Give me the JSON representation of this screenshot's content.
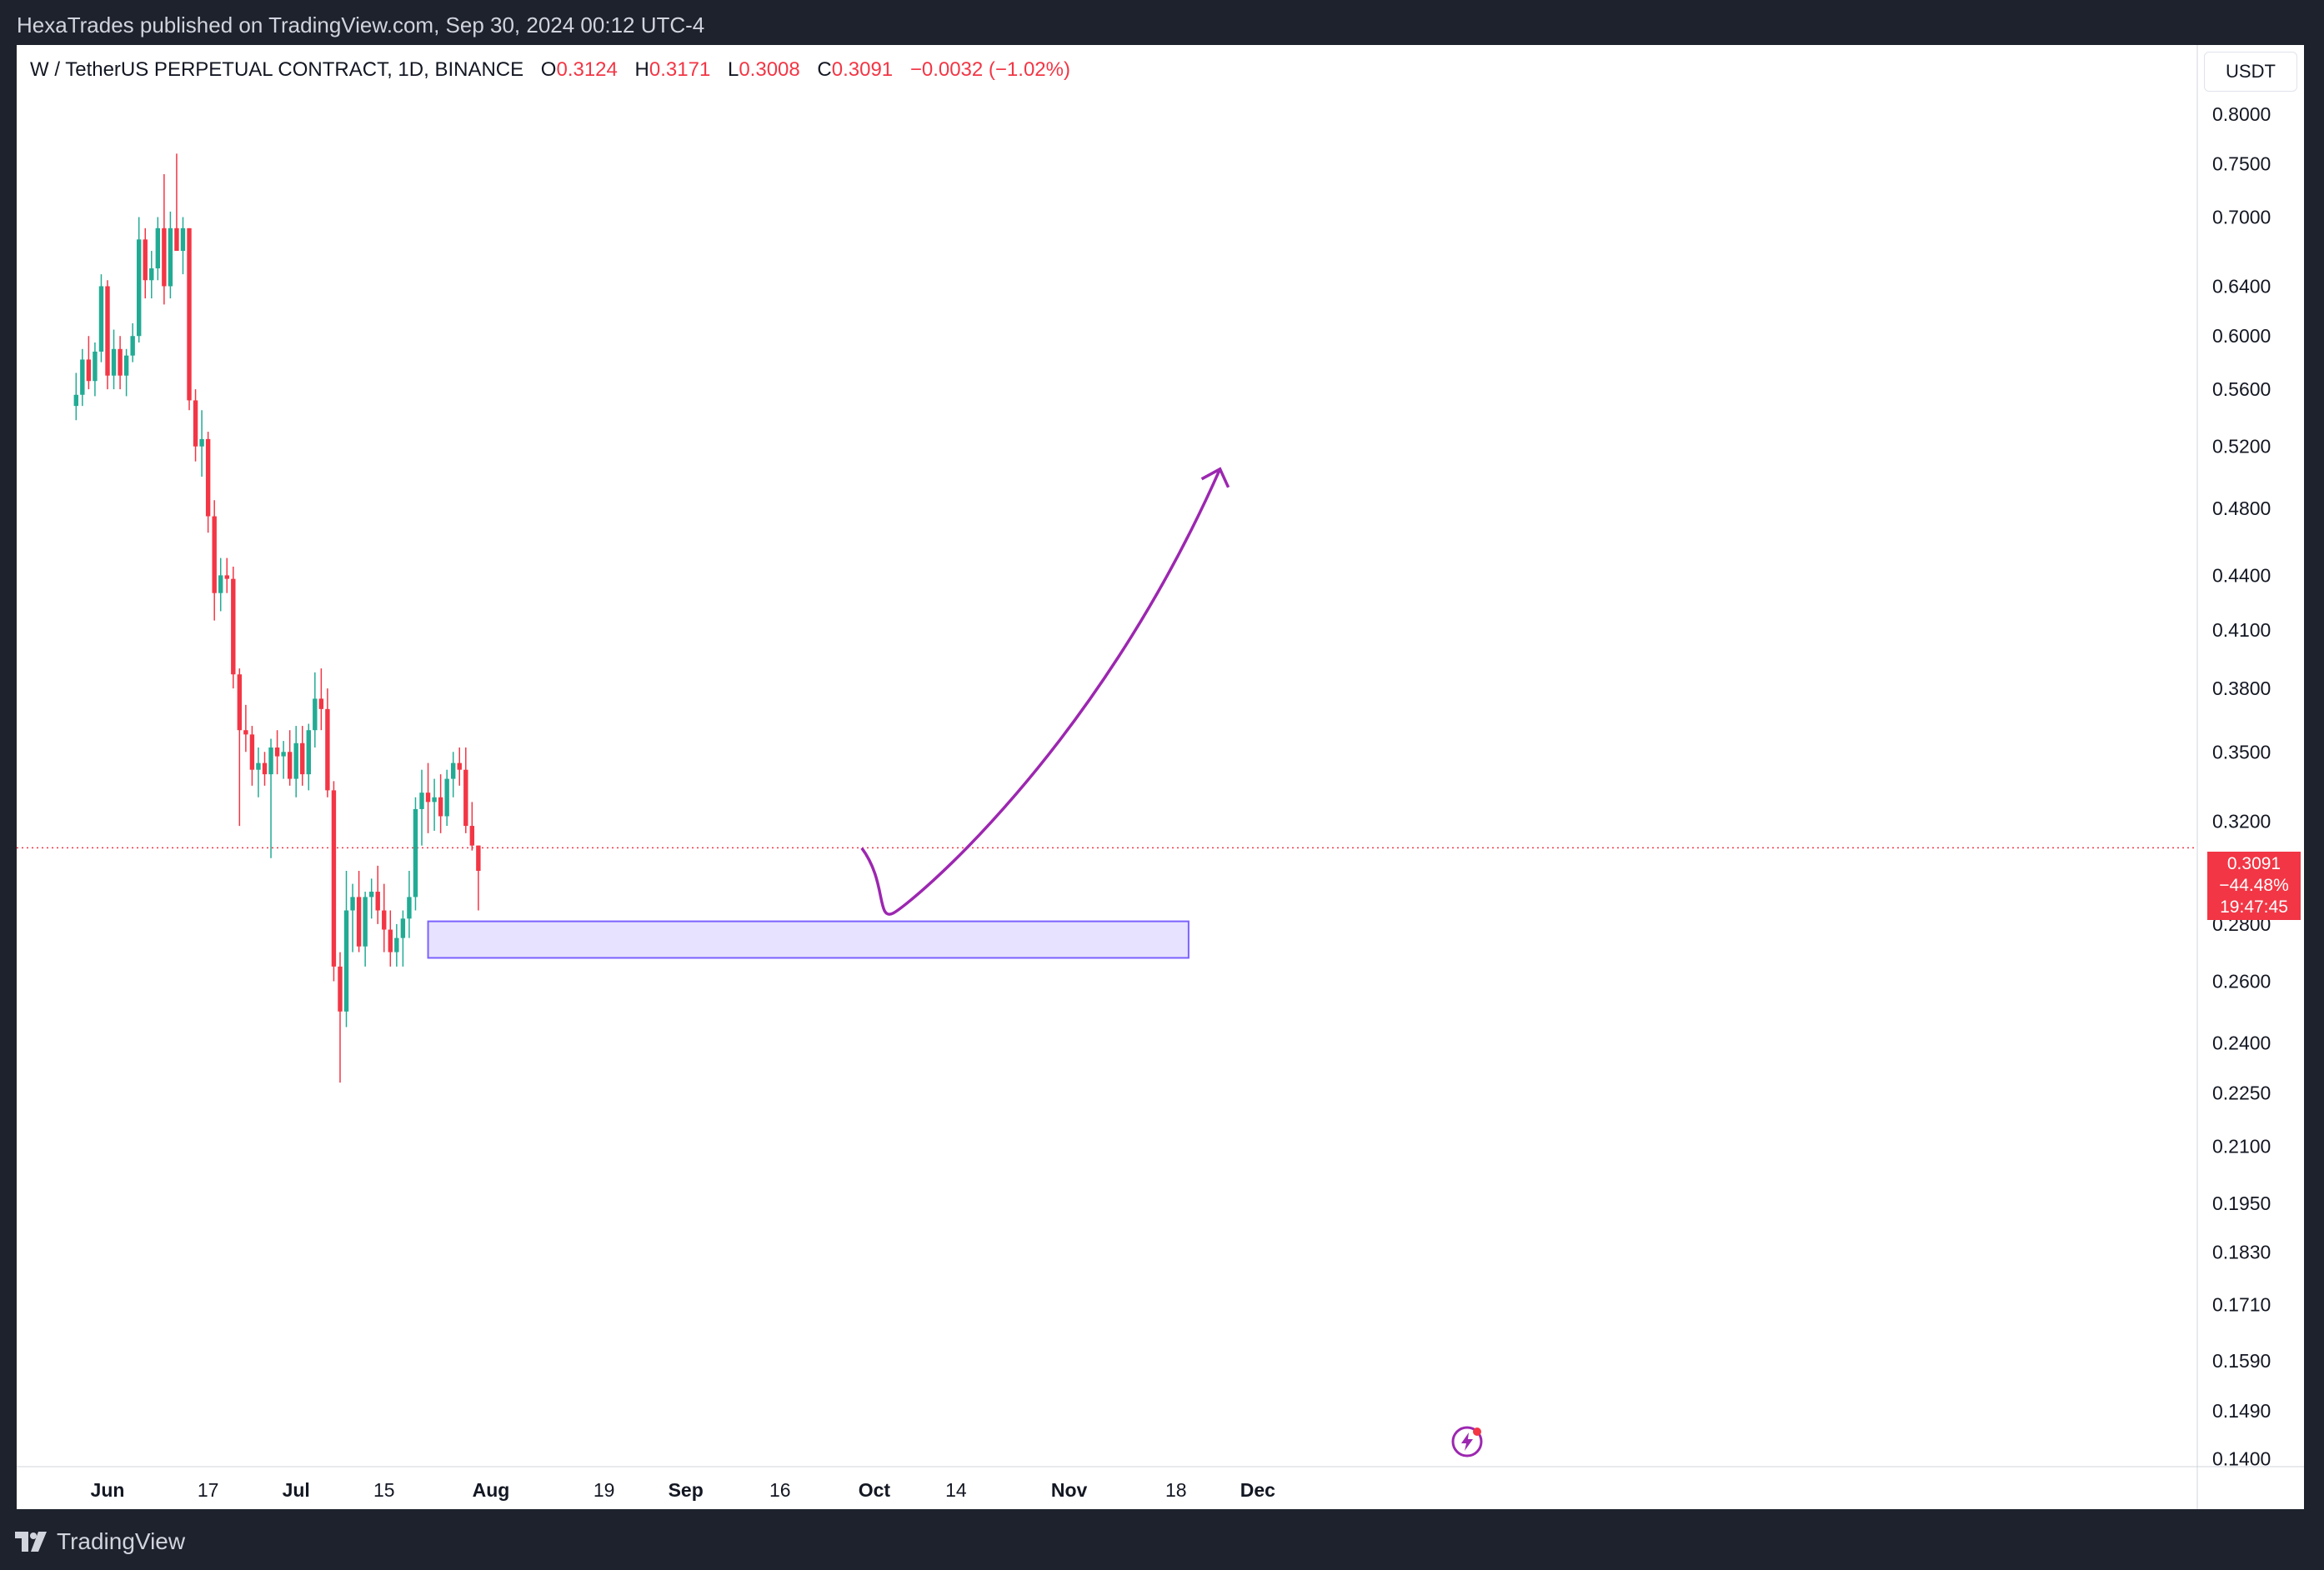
{
  "header": {
    "published_text": "HexaTrades published on TradingView.com, Sep 30, 2024 00:12 UTC-4"
  },
  "legend": {
    "symbol": "W / TetherUS PERPETUAL CONTRACT, 1D, BINANCE",
    "open_label": "O",
    "open": "0.3124",
    "high_label": "H",
    "high": "0.3171",
    "low_label": "L",
    "low": "0.3008",
    "close_label": "C",
    "close": "0.3091",
    "change": "−0.0032 (−1.02%)"
  },
  "currency_button": "USDT",
  "price_tag": {
    "price": "0.3091",
    "percent": "−44.48%",
    "countdown": "19:47:45"
  },
  "footer": {
    "brand": "TradingView"
  },
  "colors": {
    "up": "#22ab94",
    "down": "#f23645",
    "zone": "#7b61ff",
    "arrow": "#9c27b0"
  },
  "chart_data": {
    "type": "candlestick",
    "scale": "log",
    "ylim": [
      0.14,
      0.85
    ],
    "y_ticks": [
      "0.8000",
      "0.7500",
      "0.7000",
      "0.6400",
      "0.6000",
      "0.5600",
      "0.5200",
      "0.4800",
      "0.4400",
      "0.4100",
      "0.3800",
      "0.3500",
      "0.3200",
      "0.2800",
      "0.2600",
      "0.2400",
      "0.2250",
      "0.2100",
      "0.1950",
      "0.1830",
      "0.1710",
      "0.1590",
      "0.1490",
      "0.1400"
    ],
    "x_ticks": [
      "Jun",
      "17",
      "Jul",
      "15",
      "Aug",
      "19",
      "Sep",
      "16",
      "Oct",
      "14",
      "Nov",
      "18",
      "Dec"
    ],
    "x_tick_dates": [
      "2024-06-01",
      "2024-06-17",
      "2024-07-01",
      "2024-07-15",
      "2024-08-01",
      "2024-08-19",
      "2024-09-01",
      "2024-09-16",
      "2024-10-01",
      "2024-10-14",
      "2024-11-01",
      "2024-11-18",
      "2024-12-01"
    ],
    "last_price": 0.3091,
    "ohlc": [
      {
        "date": "2024-05-27",
        "o": 0.548,
        "h": 0.572,
        "l": 0.538,
        "c": 0.556
      },
      {
        "date": "2024-05-28",
        "o": 0.556,
        "h": 0.59,
        "l": 0.548,
        "c": 0.582
      },
      {
        "date": "2024-05-29",
        "o": 0.582,
        "h": 0.6,
        "l": 0.56,
        "c": 0.566
      },
      {
        "date": "2024-05-30",
        "o": 0.566,
        "h": 0.595,
        "l": 0.555,
        "c": 0.588
      },
      {
        "date": "2024-05-31",
        "o": 0.588,
        "h": 0.65,
        "l": 0.58,
        "c": 0.64
      },
      {
        "date": "2024-06-01",
        "o": 0.64,
        "h": 0.645,
        "l": 0.56,
        "c": 0.57
      },
      {
        "date": "2024-06-02",
        "o": 0.57,
        "h": 0.605,
        "l": 0.56,
        "c": 0.59
      },
      {
        "date": "2024-06-03",
        "o": 0.59,
        "h": 0.6,
        "l": 0.56,
        "c": 0.57
      },
      {
        "date": "2024-06-04",
        "o": 0.57,
        "h": 0.59,
        "l": 0.555,
        "c": 0.585
      },
      {
        "date": "2024-06-05",
        "o": 0.585,
        "h": 0.61,
        "l": 0.58,
        "c": 0.6
      },
      {
        "date": "2024-06-06",
        "o": 0.6,
        "h": 0.7,
        "l": 0.595,
        "c": 0.68
      },
      {
        "date": "2024-06-07",
        "o": 0.68,
        "h": 0.69,
        "l": 0.63,
        "c": 0.645
      },
      {
        "date": "2024-06-08",
        "o": 0.645,
        "h": 0.67,
        "l": 0.63,
        "c": 0.655
      },
      {
        "date": "2024-06-09",
        "o": 0.655,
        "h": 0.7,
        "l": 0.645,
        "c": 0.69
      },
      {
        "date": "2024-06-10",
        "o": 0.69,
        "h": 0.74,
        "l": 0.625,
        "c": 0.64
      },
      {
        "date": "2024-06-11",
        "o": 0.64,
        "h": 0.705,
        "l": 0.63,
        "c": 0.69
      },
      {
        "date": "2024-06-12",
        "o": 0.69,
        "h": 0.76,
        "l": 0.675,
        "c": 0.67
      },
      {
        "date": "2024-06-13",
        "o": 0.67,
        "h": 0.7,
        "l": 0.65,
        "c": 0.69
      },
      {
        "date": "2024-06-14",
        "o": 0.69,
        "h": 0.69,
        "l": 0.545,
        "c": 0.552
      },
      {
        "date": "2024-06-15",
        "o": 0.552,
        "h": 0.56,
        "l": 0.51,
        "c": 0.52
      },
      {
        "date": "2024-06-16",
        "o": 0.52,
        "h": 0.545,
        "l": 0.5,
        "c": 0.525
      },
      {
        "date": "2024-06-17",
        "o": 0.525,
        "h": 0.53,
        "l": 0.465,
        "c": 0.475
      },
      {
        "date": "2024-06-18",
        "o": 0.475,
        "h": 0.485,
        "l": 0.415,
        "c": 0.43
      },
      {
        "date": "2024-06-19",
        "o": 0.43,
        "h": 0.45,
        "l": 0.42,
        "c": 0.44
      },
      {
        "date": "2024-06-20",
        "o": 0.44,
        "h": 0.45,
        "l": 0.43,
        "c": 0.438
      },
      {
        "date": "2024-06-21",
        "o": 0.438,
        "h": 0.445,
        "l": 0.38,
        "c": 0.387
      },
      {
        "date": "2024-06-22",
        "o": 0.387,
        "h": 0.39,
        "l": 0.318,
        "c": 0.36
      },
      {
        "date": "2024-06-23",
        "o": 0.36,
        "h": 0.372,
        "l": 0.35,
        "c": 0.358
      },
      {
        "date": "2024-06-24",
        "o": 0.358,
        "h": 0.362,
        "l": 0.335,
        "c": 0.342
      },
      {
        "date": "2024-06-25",
        "o": 0.342,
        "h": 0.352,
        "l": 0.33,
        "c": 0.345
      },
      {
        "date": "2024-06-26",
        "o": 0.345,
        "h": 0.35,
        "l": 0.335,
        "c": 0.34
      },
      {
        "date": "2024-06-27",
        "o": 0.34,
        "h": 0.356,
        "l": 0.305,
        "c": 0.352
      },
      {
        "date": "2024-06-28",
        "o": 0.352,
        "h": 0.36,
        "l": 0.34,
        "c": 0.348
      },
      {
        "date": "2024-06-29",
        "o": 0.348,
        "h": 0.355,
        "l": 0.338,
        "c": 0.35
      },
      {
        "date": "2024-06-30",
        "o": 0.35,
        "h": 0.36,
        "l": 0.335,
        "c": 0.338
      },
      {
        "date": "2024-07-01",
        "o": 0.338,
        "h": 0.362,
        "l": 0.33,
        "c": 0.354
      },
      {
        "date": "2024-07-02",
        "o": 0.354,
        "h": 0.362,
        "l": 0.335,
        "c": 0.34
      },
      {
        "date": "2024-07-03",
        "o": 0.34,
        "h": 0.363,
        "l": 0.333,
        "c": 0.36
      },
      {
        "date": "2024-07-04",
        "o": 0.36,
        "h": 0.388,
        "l": 0.352,
        "c": 0.375
      },
      {
        "date": "2024-07-05",
        "o": 0.375,
        "h": 0.39,
        "l": 0.36,
        "c": 0.37
      },
      {
        "date": "2024-07-06",
        "o": 0.37,
        "h": 0.38,
        "l": 0.33,
        "c": 0.333
      },
      {
        "date": "2024-07-07",
        "o": 0.333,
        "h": 0.337,
        "l": 0.26,
        "c": 0.265
      },
      {
        "date": "2024-07-08",
        "o": 0.265,
        "h": 0.27,
        "l": 0.228,
        "c": 0.25
      },
      {
        "date": "2024-07-09",
        "o": 0.25,
        "h": 0.3,
        "l": 0.245,
        "c": 0.285
      },
      {
        "date": "2024-07-10",
        "o": 0.285,
        "h": 0.295,
        "l": 0.27,
        "c": 0.29
      },
      {
        "date": "2024-07-11",
        "o": 0.29,
        "h": 0.3,
        "l": 0.27,
        "c": 0.272
      },
      {
        "date": "2024-07-12",
        "o": 0.272,
        "h": 0.292,
        "l": 0.265,
        "c": 0.29
      },
      {
        "date": "2024-07-13",
        "o": 0.29,
        "h": 0.297,
        "l": 0.282,
        "c": 0.292
      },
      {
        "date": "2024-07-14",
        "o": 0.292,
        "h": 0.302,
        "l": 0.28,
        "c": 0.285
      },
      {
        "date": "2024-07-15",
        "o": 0.285,
        "h": 0.295,
        "l": 0.27,
        "c": 0.278
      },
      {
        "date": "2024-07-16",
        "o": 0.278,
        "h": 0.285,
        "l": 0.265,
        "c": 0.27
      },
      {
        "date": "2024-07-17",
        "o": 0.27,
        "h": 0.28,
        "l": 0.265,
        "c": 0.275
      },
      {
        "date": "2024-07-18",
        "o": 0.275,
        "h": 0.285,
        "l": 0.265,
        "c": 0.282
      },
      {
        "date": "2024-07-19",
        "o": 0.282,
        "h": 0.3,
        "l": 0.275,
        "c": 0.29
      },
      {
        "date": "2024-07-20",
        "o": 0.29,
        "h": 0.33,
        "l": 0.285,
        "c": 0.325
      },
      {
        "date": "2024-07-21",
        "o": 0.325,
        "h": 0.342,
        "l": 0.31,
        "c": 0.332
      },
      {
        "date": "2024-07-22",
        "o": 0.332,
        "h": 0.345,
        "l": 0.315,
        "c": 0.328
      },
      {
        "date": "2024-07-23",
        "o": 0.328,
        "h": 0.338,
        "l": 0.316,
        "c": 0.33
      },
      {
        "date": "2024-07-24",
        "o": 0.33,
        "h": 0.34,
        "l": 0.315,
        "c": 0.322
      },
      {
        "date": "2024-07-25",
        "o": 0.322,
        "h": 0.342,
        "l": 0.318,
        "c": 0.338
      },
      {
        "date": "2024-07-26",
        "o": 0.338,
        "h": 0.35,
        "l": 0.33,
        "c": 0.345
      },
      {
        "date": "2024-07-27",
        "o": 0.345,
        "h": 0.352,
        "l": 0.335,
        "c": 0.342
      },
      {
        "date": "2024-07-28",
        "o": 0.342,
        "h": 0.352,
        "l": 0.315,
        "c": 0.318
      },
      {
        "date": "2024-07-29",
        "o": 0.318,
        "h": 0.328,
        "l": 0.308,
        "c": 0.31
      },
      {
        "date": "2024-07-30",
        "o": 0.31,
        "h": 0.31,
        "l": 0.285,
        "c": 0.3
      }
    ]
  }
}
